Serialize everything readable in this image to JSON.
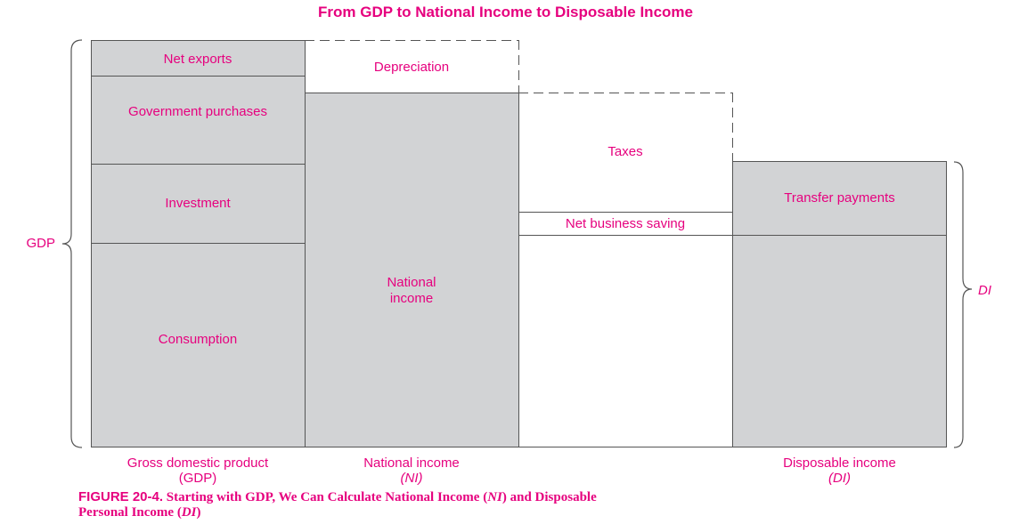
{
  "title": "From GDP to National Income to Disposable Income",
  "gdp_column": {
    "segments": [
      "Net exports",
      "Government purchases",
      "Investment",
      "Consumption"
    ],
    "brace_label": "GDP",
    "caption_line1": "Gross domestic product",
    "caption_line2": "(GDP)"
  },
  "ni_column": {
    "top_label": "Depreciation",
    "main_label_line1": "National",
    "main_label_line2": "income",
    "caption_line1": "National income",
    "caption_line2": "(NI)"
  },
  "deductions_column": {
    "taxes_label": "Taxes",
    "saving_label": "Net business saving"
  },
  "di_column": {
    "transfer_label": "Transfer payments",
    "brace_label": "DI",
    "caption_line1": "Disposable income",
    "caption_line2": "(DI)"
  },
  "figure_caption": {
    "number": "FIGURE 20-4.",
    "text_a": "Starting with GDP, We Can Calculate National Income (",
    "ni": "NI",
    "text_b": ") and Disposable",
    "text_c": "Personal Income (",
    "di": "DI",
    "text_d": ")"
  },
  "colors": {
    "accent": "#e6007e",
    "fill": "#d2d3d5",
    "stroke": "#555555"
  }
}
